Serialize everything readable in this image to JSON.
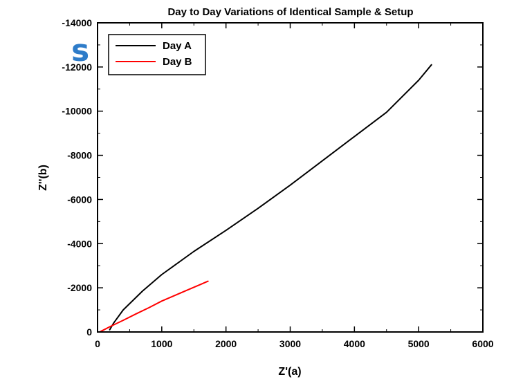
{
  "slide_fragment": "s",
  "chart_data": {
    "type": "line",
    "title": "Day to Day Variations of Identical Sample & Setup",
    "xlabel": "Z'(a)",
    "ylabel": "Z''(b)",
    "xlim": [
      0,
      6000
    ],
    "ylim": [
      0,
      -14000
    ],
    "y_inverted": true,
    "x_ticks": [
      0,
      1000,
      2000,
      3000,
      4000,
      5000,
      6000
    ],
    "y_ticks": [
      0,
      -2000,
      -4000,
      -6000,
      -8000,
      -10000,
      -12000,
      -14000
    ],
    "x_tick_labels": [
      "0",
      "1000",
      "2000",
      "3000",
      "4000",
      "5000",
      "6000"
    ],
    "y_tick_labels": [
      "0",
      "-2000",
      "-4000",
      "-6000",
      "-8000",
      "-10000",
      "-12000",
      "-14000"
    ],
    "grid": false,
    "legend_position": "top-left",
    "series": [
      {
        "name": "Day A",
        "color": "#000000",
        "x": [
          190,
          250,
          400,
          700,
          1000,
          1500,
          2000,
          2500,
          3000,
          3500,
          4000,
          4500,
          5000,
          5200
        ],
        "y": [
          -100,
          -400,
          -1000,
          -1850,
          -2600,
          -3650,
          -4600,
          -5600,
          -6650,
          -7750,
          -8850,
          -9950,
          -11400,
          -12100
        ]
      },
      {
        "name": "Day B",
        "color": "#ff0000",
        "x": [
          30,
          100,
          200,
          400,
          600,
          800,
          1000,
          1200,
          1400,
          1600,
          1720
        ],
        "y": [
          0,
          -100,
          -250,
          -530,
          -820,
          -1100,
          -1400,
          -1650,
          -1900,
          -2150,
          -2300
        ]
      }
    ]
  }
}
